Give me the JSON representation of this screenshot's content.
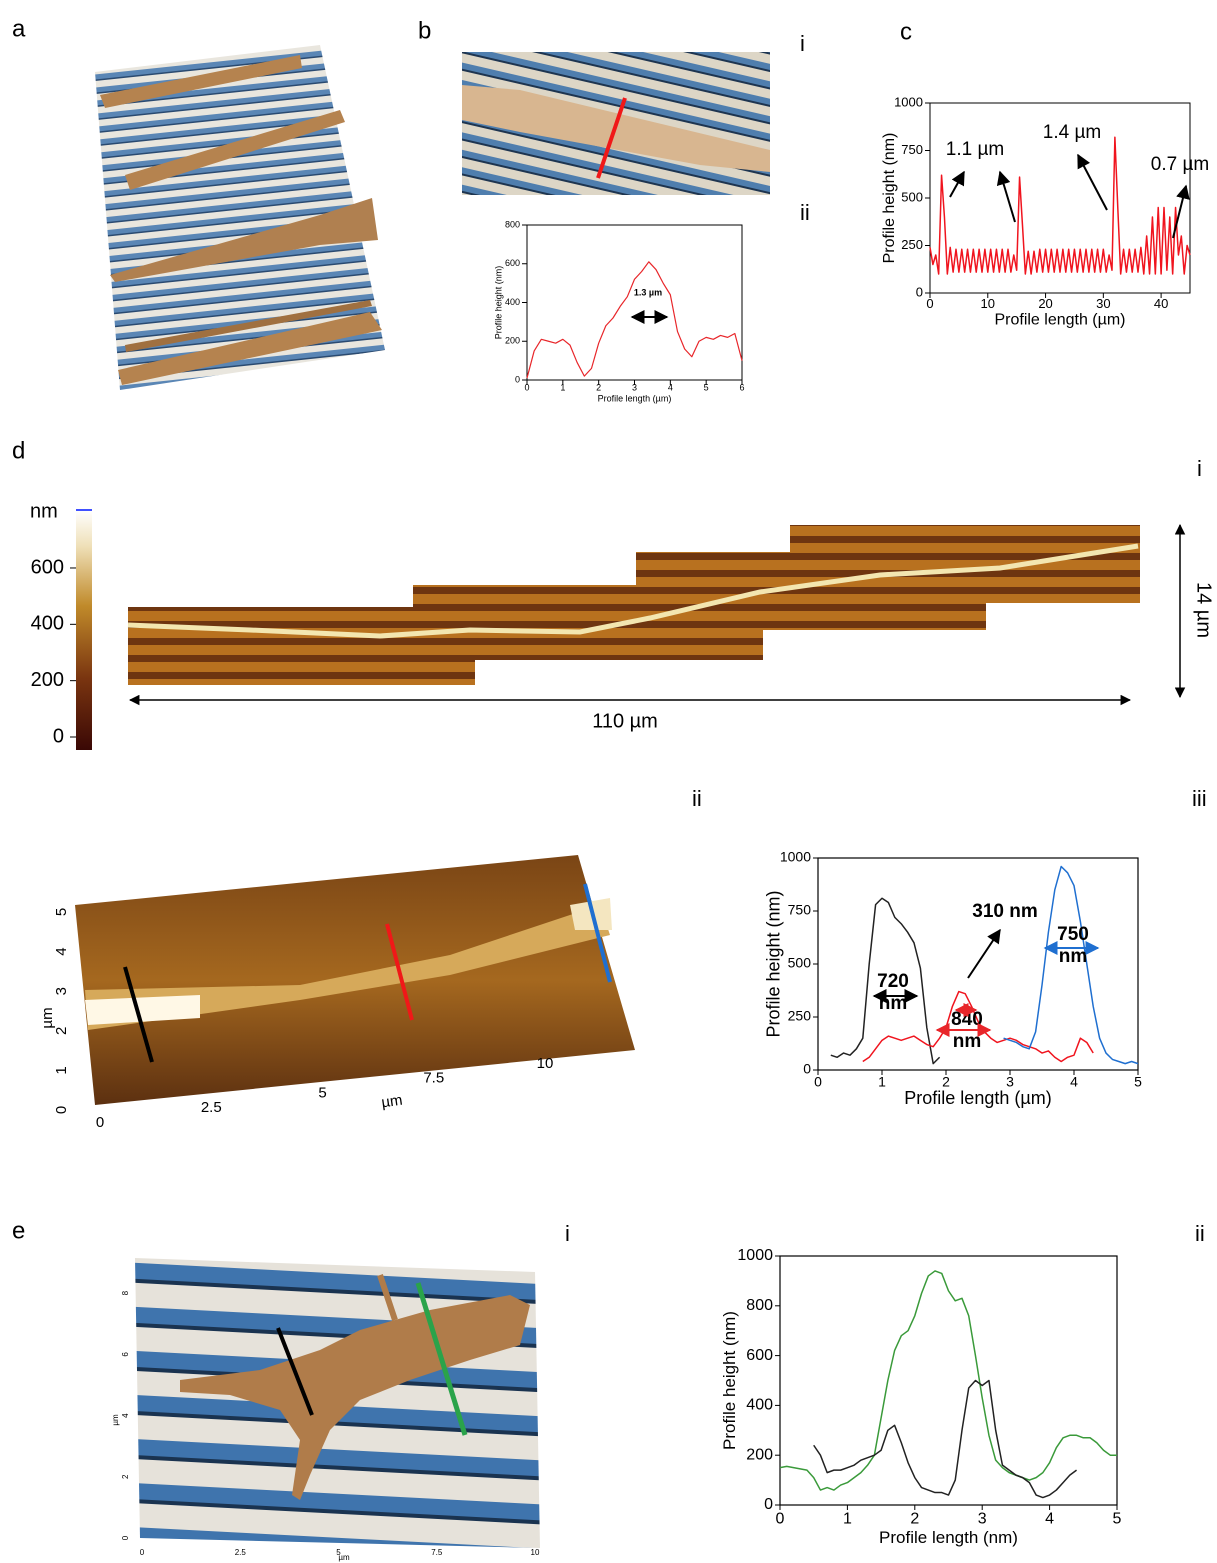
{
  "figure": {
    "panel_labels": {
      "a": "a",
      "b": "b",
      "c": "c",
      "d": "d",
      "e": "e"
    },
    "sub_labels": {
      "b_i": "i",
      "b_ii": "ii",
      "d_i": "i",
      "d_ii": "ii",
      "d_iii": "iii",
      "e_i": "i",
      "e_ii": "ii"
    },
    "d_i": {
      "length": "110 µm",
      "height": "14 µm"
    },
    "colorbar": {
      "label": "nm",
      "ticks": [
        0,
        200,
        400,
        600
      ]
    },
    "d_ii": {
      "xticks": [
        0,
        2.5,
        5,
        7.5,
        10
      ],
      "yticks": [
        0,
        1,
        2,
        3,
        4,
        5
      ],
      "xlabel": "µm",
      "ylabel": "µm"
    },
    "e_i": {
      "xticks": [
        0,
        2.5,
        5,
        7.5,
        10
      ],
      "yticks": [
        0,
        2,
        4,
        6,
        8
      ],
      "xlabel": "µm",
      "ylabel": "µm"
    }
  },
  "chart_data": [
    {
      "type": "line",
      "xlabel": "Profile length (µm)",
      "ylabel": "Profile height (nm)",
      "x": [
        0,
        0.2,
        0.4,
        0.6,
        0.8,
        1.0,
        1.2,
        1.4,
        1.6,
        1.8,
        2.0,
        2.2,
        2.4,
        2.6,
        2.8,
        3.0,
        3.2,
        3.4,
        3.6,
        3.8,
        4.0,
        4.2,
        4.4,
        4.6,
        4.8,
        5.0,
        5.2,
        5.4,
        5.6,
        5.8,
        6.0
      ],
      "values": [
        10,
        150,
        210,
        200,
        190,
        210,
        180,
        90,
        20,
        60,
        190,
        280,
        320,
        380,
        430,
        520,
        560,
        610,
        570,
        500,
        440,
        250,
        160,
        120,
        200,
        220,
        210,
        230,
        220,
        240,
        100
      ],
      "color": "#e8262a",
      "xlim": [
        0,
        6
      ],
      "xticks": [
        0,
        1,
        2,
        3,
        4,
        5,
        6
      ],
      "ylim": [
        0,
        800
      ],
      "yticks": [
        0,
        200,
        400,
        600,
        800
      ],
      "annotations": [
        "1.3 µm"
      ]
    },
    {
      "type": "line",
      "xlabel": "Profile length (µm)",
      "ylabel": "Profile height (nm)",
      "x": [
        0,
        0.5,
        1,
        1.5,
        2,
        2.5,
        3,
        3.5,
        4,
        4.5,
        5,
        5.5,
        6,
        6.5,
        7,
        7.5,
        8,
        8.5,
        9,
        9.5,
        10,
        10.5,
        11,
        11.5,
        12,
        12.5,
        13,
        13.5,
        14,
        14.5,
        15,
        15.5,
        16,
        16.5,
        17,
        17.5,
        18,
        18.5,
        19,
        19.5,
        20,
        20.5,
        21,
        21.5,
        22,
        22.5,
        23,
        23.5,
        24,
        24.5,
        25,
        25.5,
        26,
        26.5,
        27,
        27.5,
        28,
        28.5,
        29,
        29.5,
        30,
        30.5,
        31,
        31.5,
        32,
        32.5,
        33,
        33.5,
        34,
        34.5,
        35,
        35.5,
        36,
        36.5,
        37,
        37.5,
        38,
        38.5,
        39,
        39.5,
        40,
        40.5,
        41,
        41.5,
        42,
        42.5,
        43,
        43.5,
        44,
        44.5,
        45
      ],
      "values": [
        240,
        150,
        200,
        100,
        620,
        400,
        100,
        240,
        110,
        230,
        110,
        230,
        110,
        230,
        110,
        230,
        110,
        230,
        110,
        230,
        110,
        230,
        110,
        230,
        110,
        230,
        110,
        230,
        110,
        200,
        120,
        610,
        360,
        100,
        220,
        100,
        220,
        110,
        230,
        110,
        230,
        110,
        230,
        110,
        230,
        110,
        230,
        110,
        230,
        110,
        230,
        110,
        230,
        110,
        230,
        110,
        230,
        110,
        230,
        110,
        230,
        110,
        200,
        120,
        820,
        450,
        100,
        230,
        110,
        230,
        110,
        230,
        110,
        240,
        100,
        300,
        100,
        400,
        100,
        450,
        100,
        450,
        120,
        400,
        100,
        450,
        200,
        300,
        100,
        250,
        200
      ],
      "color": "#f0141e",
      "xlim": [
        0,
        45
      ],
      "xticks": [
        0,
        10,
        20,
        30,
        40
      ],
      "ylim": [
        0,
        1000
      ],
      "yticks": [
        0,
        250,
        500,
        750,
        1000
      ],
      "annotations": [
        "1.1 µm",
        "1.4 µm",
        "0.7 µm"
      ]
    },
    {
      "type": "line",
      "xlabel": "Profile length (µm)",
      "ylabel": "Profile height (nm)",
      "x": [
        0.2,
        0.3,
        0.4,
        0.5,
        0.6,
        0.7,
        0.8,
        0.9,
        1.0,
        1.1,
        1.2,
        1.3,
        1.4,
        1.5,
        1.6,
        1.7,
        1.8,
        1.9,
        2.0,
        2.1,
        2.2,
        2.3,
        2.4,
        2.5,
        2.6,
        2.7,
        2.8,
        2.9,
        3.0,
        3.1,
        3.2,
        3.3,
        3.4,
        3.5,
        3.6,
        3.7,
        3.8,
        3.9,
        4.0,
        4.1,
        4.2,
        4.3,
        4.4,
        4.5,
        4.6,
        4.7,
        4.8,
        4.9,
        5.0
      ],
      "series": [
        {
          "color": "#222222",
          "values": [
            70,
            60,
            80,
            70,
            100,
            150,
            500,
            780,
            810,
            790,
            720,
            690,
            650,
            600,
            480,
            200,
            30,
            60,
            null,
            null,
            null,
            null,
            null,
            null,
            null,
            null,
            null,
            null,
            null,
            null,
            null,
            null,
            null,
            null,
            null,
            null,
            null,
            null,
            null,
            null,
            null,
            null,
            null,
            null,
            null,
            null,
            null,
            null,
            null
          ]
        },
        {
          "color": "#f0141e",
          "values": [
            null,
            null,
            null,
            null,
            null,
            40,
            60,
            100,
            140,
            160,
            150,
            140,
            150,
            160,
            140,
            120,
            110,
            150,
            200,
            300,
            370,
            360,
            300,
            230,
            180,
            150,
            130,
            140,
            150,
            140,
            120,
            110,
            100,
            80,
            90,
            60,
            40,
            60,
            70,
            150,
            130,
            80,
            null,
            null,
            null,
            null,
            null,
            null,
            null
          ]
        },
        {
          "color": "#1f6fd0",
          "values": [
            null,
            null,
            null,
            null,
            null,
            null,
            null,
            null,
            null,
            null,
            null,
            null,
            null,
            null,
            null,
            null,
            null,
            null,
            null,
            null,
            null,
            null,
            null,
            null,
            null,
            null,
            null,
            150,
            140,
            130,
            110,
            100,
            180,
            400,
            650,
            850,
            960,
            930,
            870,
            700,
            500,
            300,
            150,
            80,
            50,
            40,
            30,
            40,
            30
          ]
        }
      ],
      "xlim": [
        0,
        5
      ],
      "xticks": [
        0,
        1,
        2,
        3,
        4,
        5
      ],
      "ylim": [
        0,
        1000
      ],
      "yticks": [
        0,
        250,
        500,
        750,
        1000
      ],
      "annotations": [
        "310 nm",
        "720 nm",
        "840 nm",
        "750 nm"
      ]
    },
    {
      "type": "line",
      "xlabel": "Profile length (nm)",
      "ylabel": "Profile height (nm)",
      "x": [
        0,
        0.1,
        0.2,
        0.3,
        0.4,
        0.5,
        0.6,
        0.7,
        0.8,
        0.9,
        1.0,
        1.1,
        1.2,
        1.3,
        1.4,
        1.5,
        1.6,
        1.7,
        1.8,
        1.9,
        2.0,
        2.1,
        2.2,
        2.3,
        2.4,
        2.5,
        2.6,
        2.7,
        2.8,
        2.9,
        3.0,
        3.1,
        3.2,
        3.3,
        3.4,
        3.5,
        3.6,
        3.7,
        3.8,
        3.9,
        4.0,
        4.1,
        4.2,
        4.3,
        4.4,
        4.5,
        4.6,
        4.7,
        4.8,
        4.9,
        5.0
      ],
      "series": [
        {
          "color": "#3a9a3a",
          "values": [
            150,
            155,
            150,
            145,
            140,
            110,
            60,
            70,
            60,
            80,
            90,
            110,
            130,
            160,
            200,
            350,
            500,
            620,
            680,
            700,
            760,
            850,
            920,
            940,
            930,
            860,
            820,
            830,
            760,
            600,
            430,
            280,
            180,
            150,
            130,
            120,
            110,
            100,
            110,
            130,
            170,
            230,
            270,
            280,
            280,
            270,
            270,
            250,
            220,
            200,
            200
          ]
        },
        {
          "color": "#222222",
          "values": [
            null,
            null,
            null,
            null,
            null,
            240,
            200,
            130,
            140,
            140,
            150,
            160,
            180,
            190,
            200,
            220,
            300,
            320,
            250,
            170,
            110,
            70,
            60,
            50,
            50,
            40,
            100,
            300,
            470,
            500,
            480,
            500,
            300,
            160,
            140,
            120,
            110,
            90,
            40,
            30,
            40,
            60,
            90,
            120,
            140,
            null,
            null,
            null,
            null,
            null,
            null
          ]
        }
      ],
      "xlim": [
        0,
        5
      ],
      "xticks": [
        0,
        1,
        2,
        3,
        4,
        5
      ],
      "ylim": [
        0,
        1000
      ],
      "yticks": [
        0,
        200,
        400,
        600,
        800,
        1000
      ]
    }
  ]
}
